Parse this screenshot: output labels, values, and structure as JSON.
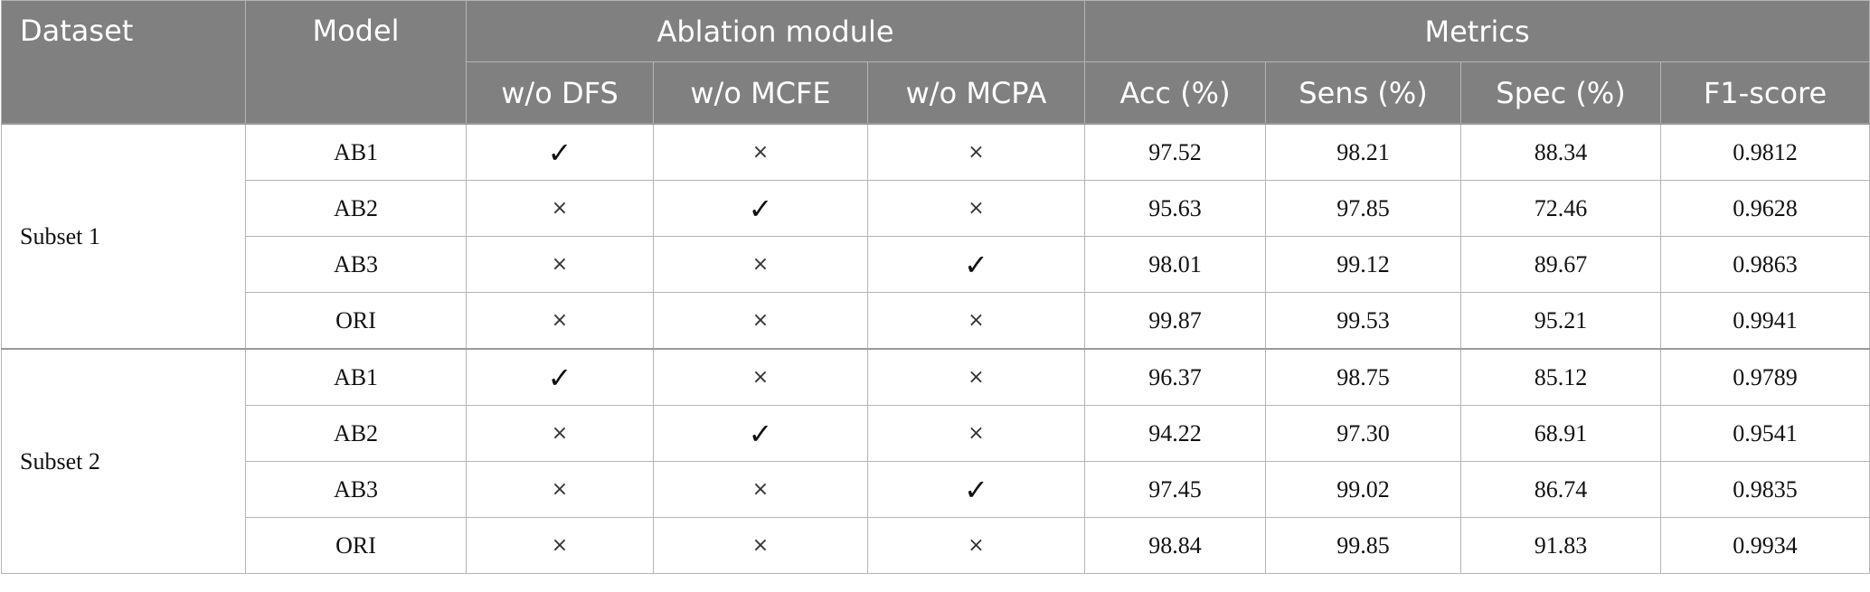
{
  "header": {
    "dataset": "Dataset",
    "model": "Model",
    "ablation_module": "Ablation module",
    "metrics": "Metrics",
    "ablation_columns": [
      "w/o DFS",
      "w/o MCFE",
      "w/o MCPA"
    ],
    "metric_columns": [
      "Acc (%)",
      "Sens (%)",
      "Spec (%)",
      "F1-score"
    ]
  },
  "symbols": {
    "check": "✓",
    "cross": "×"
  },
  "groups": [
    {
      "dataset": "Subset 1",
      "rows": [
        {
          "model": "AB1",
          "ablation": [
            "✓",
            "×",
            "×"
          ],
          "acc": "97.52",
          "sens": "98.21",
          "spec": "88.34",
          "f1": "0.9812"
        },
        {
          "model": "AB2",
          "ablation": [
            "×",
            "✓",
            "×"
          ],
          "acc": "95.63",
          "sens": "97.85",
          "spec": "72.46",
          "f1": "0.9628"
        },
        {
          "model": "AB3",
          "ablation": [
            "×",
            "×",
            "✓"
          ],
          "acc": "98.01",
          "sens": "99.12",
          "spec": "89.67",
          "f1": "0.9863"
        },
        {
          "model": "ORI",
          "ablation": [
            "×",
            "×",
            "×"
          ],
          "acc": "99.87",
          "sens": "99.53",
          "spec": "95.21",
          "f1": "0.9941"
        }
      ]
    },
    {
      "dataset": "Subset 2",
      "rows": [
        {
          "model": "AB1",
          "ablation": [
            "✓",
            "×",
            "×"
          ],
          "acc": "96.37",
          "sens": "98.75",
          "spec": "85.12",
          "f1": "0.9789"
        },
        {
          "model": "AB2",
          "ablation": [
            "×",
            "✓",
            "×"
          ],
          "acc": "94.22",
          "sens": "97.30",
          "spec": "68.91",
          "f1": "0.9541"
        },
        {
          "model": "AB3",
          "ablation": [
            "×",
            "×",
            "✓"
          ],
          "acc": "97.45",
          "sens": "99.02",
          "spec": "86.74",
          "f1": "0.9835"
        },
        {
          "model": "ORI",
          "ablation": [
            "×",
            "×",
            "×"
          ],
          "acc": "98.84",
          "sens": "99.85",
          "spec": "91.83",
          "f1": "0.9934"
        }
      ]
    }
  ]
}
